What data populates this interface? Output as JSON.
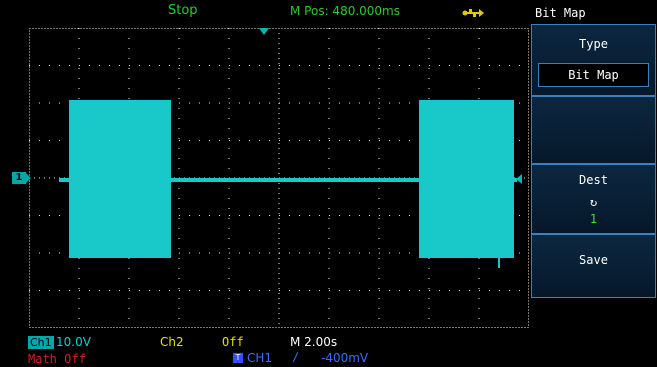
{
  "status": {
    "run_state": "Stop",
    "m_pos": "M Pos: 480.000ms"
  },
  "icons": {
    "usb": "usb-icon",
    "trigger_position": "trigger-position-marker-icon",
    "channel1_marker": "channel1-ground-marker-icon",
    "cycle": "cycle-arrow-icon"
  },
  "channel1_marker_label": "1",
  "menu": {
    "title": "Bit Map",
    "type_label": "Type",
    "type_value": "Bit Map",
    "dest_label": "Dest",
    "dest_cycle_glyph": "↻",
    "dest_value": "1",
    "save_label": "Save"
  },
  "bottom": {
    "ch1_tag": "Ch1",
    "ch1_volts": "10.0V",
    "ch2_tag": "Ch2",
    "ch2_value": "Off",
    "timebase": "M 2.00s",
    "math": "Math Off",
    "trig_source_icon": "T",
    "trig_source": "CH1",
    "trig_edge": "∕",
    "trig_level": "-400mV"
  },
  "colors": {
    "trace": "#19c8c8",
    "grid_dots": "#e8e8e8",
    "status_green": "#2ec82e",
    "menu_border": "#3a7fc0",
    "ch2_yellow": "#e0e000",
    "math_red": "#d02020",
    "trigger_blue": "#3a6cff"
  }
}
